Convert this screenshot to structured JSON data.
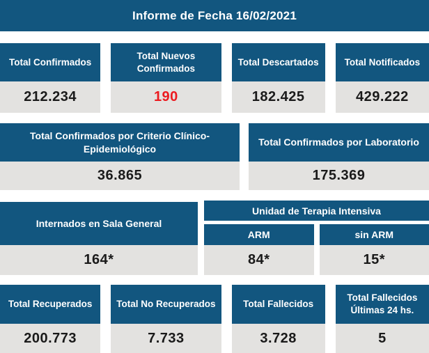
{
  "header": {
    "title": "Informe de Fecha 16/02/2021"
  },
  "colors": {
    "primary_blue": "#12567F",
    "value_bg": "#E3E2E0",
    "value_text": "#1A1A1A",
    "highlight_red": "#EC1A1F"
  },
  "totals_row": {
    "cards": [
      {
        "label": "Total Confirmados",
        "value": "212.234"
      },
      {
        "label": "Total Nuevos Confirmados",
        "value": "190",
        "highlight": "red"
      },
      {
        "label": "Total Descartados",
        "value": "182.425"
      },
      {
        "label": "Total Notificados",
        "value": "429.222"
      }
    ]
  },
  "criteria_row": {
    "cards": [
      {
        "label": "Total Confirmados por Criterio Clínico-Epidemiológico",
        "value": "36.865"
      },
      {
        "label": "Total Confirmados por Laboratorio",
        "value": "175.369"
      }
    ]
  },
  "hospital_row": {
    "general_ward": {
      "label": "Internados en Sala General",
      "value": "164*"
    },
    "icu": {
      "label": "Unidad de Terapia Intensiva",
      "sub_cards": [
        {
          "label": "ARM",
          "value": "84*"
        },
        {
          "label": "sin ARM",
          "value": "15*"
        }
      ]
    }
  },
  "outcomes_row": {
    "cards": [
      {
        "label": "Total Recuperados",
        "value": "200.773"
      },
      {
        "label": "Total No Recuperados",
        "value": "7.733"
      },
      {
        "label": "Total Fallecidos",
        "value": "3.728"
      },
      {
        "label": "Total Fallecidos Últimas 24 hs.",
        "value": "5"
      }
    ]
  }
}
